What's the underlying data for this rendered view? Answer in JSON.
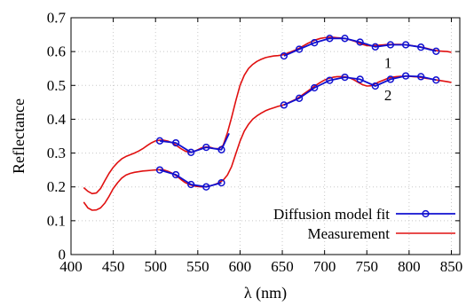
{
  "chart_data": {
    "type": "line",
    "xlabel": "λ (nm)",
    "ylabel": "Reflectance",
    "xlim": [
      400,
      860
    ],
    "ylim": [
      0,
      0.7
    ],
    "x_ticks": [
      400,
      450,
      500,
      550,
      600,
      650,
      700,
      750,
      800,
      850
    ],
    "y_ticks": [
      0,
      0.1,
      0.2,
      0.3,
      0.4,
      0.5,
      0.6,
      0.7
    ],
    "grid": true,
    "legend_position": "bottom-right",
    "colors": {
      "fit": "#1010d0",
      "measurement": "#e01010"
    },
    "legend": [
      {
        "label": "Diffusion model fit",
        "series": "fit",
        "marker": "circle"
      },
      {
        "label": "Measurement",
        "series": "measurement",
        "marker": "none"
      }
    ],
    "annotations": [
      {
        "text": "1",
        "x": 775,
        "y": 0.568
      },
      {
        "text": "2",
        "x": 775,
        "y": 0.472
      }
    ],
    "measurement": [
      {
        "x": [
          415,
          420,
          425,
          430,
          435,
          440,
          445,
          450,
          455,
          460,
          465,
          470,
          475,
          480,
          485,
          490,
          495,
          500,
          505,
          510,
          515,
          520,
          525,
          530,
          535,
          540,
          545,
          550,
          555,
          560,
          565,
          570,
          575,
          580,
          585,
          590,
          595,
          600,
          605,
          610,
          615,
          620,
          625,
          630,
          635,
          640,
          645,
          650,
          655,
          660,
          665,
          670,
          675,
          680,
          685,
          690,
          695,
          700,
          705,
          710,
          715,
          720,
          725,
          730,
          735,
          740,
          745,
          750,
          755,
          760,
          765,
          770,
          775,
          780,
          785,
          790,
          795,
          800,
          805,
          810,
          815,
          820,
          825,
          830,
          835,
          840,
          845,
          850
        ],
        "y": [
          0.198,
          0.187,
          0.18,
          0.182,
          0.195,
          0.218,
          0.24,
          0.258,
          0.272,
          0.283,
          0.29,
          0.295,
          0.3,
          0.306,
          0.313,
          0.322,
          0.33,
          0.336,
          0.338,
          0.338,
          0.335,
          0.33,
          0.322,
          0.313,
          0.306,
          0.302,
          0.304,
          0.31,
          0.316,
          0.318,
          0.317,
          0.313,
          0.313,
          0.323,
          0.36,
          0.405,
          0.455,
          0.5,
          0.53,
          0.55,
          0.562,
          0.571,
          0.577,
          0.582,
          0.585,
          0.587,
          0.588,
          0.59,
          0.594,
          0.599,
          0.604,
          0.61,
          0.617,
          0.624,
          0.63,
          0.635,
          0.639,
          0.641,
          0.642,
          0.642,
          0.641,
          0.64,
          0.638,
          0.635,
          0.631,
          0.626,
          0.621,
          0.618,
          0.617,
          0.618,
          0.619,
          0.62,
          0.621,
          0.621,
          0.621,
          0.621,
          0.62,
          0.619,
          0.617,
          0.615,
          0.613,
          0.61,
          0.607,
          0.604,
          0.602,
          0.601,
          0.6,
          0.598
        ]
      },
      {
        "x": [
          415,
          420,
          425,
          430,
          435,
          440,
          445,
          450,
          455,
          460,
          465,
          470,
          475,
          480,
          485,
          490,
          495,
          500,
          505,
          510,
          515,
          520,
          525,
          530,
          535,
          540,
          545,
          550,
          555,
          560,
          565,
          570,
          575,
          580,
          585,
          590,
          595,
          600,
          605,
          610,
          615,
          620,
          625,
          630,
          635,
          640,
          645,
          650,
          655,
          660,
          665,
          670,
          675,
          680,
          685,
          690,
          695,
          700,
          705,
          710,
          715,
          720,
          725,
          730,
          735,
          740,
          745,
          750,
          755,
          760,
          765,
          770,
          775,
          780,
          785,
          790,
          795,
          800,
          805,
          810,
          815,
          820,
          825,
          830,
          835,
          840,
          845,
          850
        ],
        "y": [
          0.155,
          0.138,
          0.131,
          0.132,
          0.138,
          0.152,
          0.172,
          0.195,
          0.212,
          0.226,
          0.235,
          0.24,
          0.243,
          0.245,
          0.247,
          0.248,
          0.249,
          0.25,
          0.251,
          0.25,
          0.246,
          0.24,
          0.232,
          0.222,
          0.213,
          0.207,
          0.203,
          0.201,
          0.2,
          0.201,
          0.203,
          0.207,
          0.212,
          0.22,
          0.235,
          0.26,
          0.298,
          0.335,
          0.365,
          0.385,
          0.4,
          0.41,
          0.418,
          0.425,
          0.43,
          0.434,
          0.438,
          0.441,
          0.446,
          0.452,
          0.458,
          0.465,
          0.474,
          0.483,
          0.492,
          0.501,
          0.509,
          0.516,
          0.521,
          0.524,
          0.526,
          0.526,
          0.525,
          0.522,
          0.516,
          0.509,
          0.502,
          0.498,
          0.499,
          0.505,
          0.511,
          0.516,
          0.521,
          0.524,
          0.526,
          0.527,
          0.527,
          0.527,
          0.526,
          0.525,
          0.523,
          0.521,
          0.519,
          0.517,
          0.515,
          0.513,
          0.511,
          0.509
        ]
      }
    ],
    "fit": [
      {
        "x": [
          505,
          524,
          542,
          560,
          578,
          587,
          652,
          670,
          688,
          706,
          724,
          742,
          760,
          778,
          796,
          814,
          832
        ],
        "y": [
          0.336,
          0.33,
          0.302,
          0.317,
          0.31,
          0.358,
          0.587,
          0.607,
          0.626,
          0.639,
          0.639,
          0.628,
          0.614,
          0.62,
          0.62,
          0.613,
          0.601
        ],
        "markers": [
          1,
          1,
          1,
          1,
          1,
          0,
          1,
          1,
          1,
          1,
          1,
          1,
          1,
          1,
          1,
          1,
          1
        ],
        "segments": [
          [
            0,
            5
          ],
          [
            6,
            16
          ]
        ]
      },
      {
        "x": [
          505,
          524,
          542,
          560,
          578,
          652,
          670,
          688,
          706,
          724,
          742,
          760,
          778,
          796,
          814,
          832
        ],
        "y": [
          0.25,
          0.236,
          0.207,
          0.2,
          0.212,
          0.442,
          0.462,
          0.493,
          0.515,
          0.524,
          0.518,
          0.498,
          0.518,
          0.528,
          0.526,
          0.516
        ],
        "markers": [
          1,
          1,
          1,
          1,
          1,
          1,
          1,
          1,
          1,
          1,
          1,
          1,
          1,
          1,
          1,
          1
        ],
        "segments": [
          [
            0,
            4
          ],
          [
            5,
            15
          ]
        ]
      }
    ]
  }
}
